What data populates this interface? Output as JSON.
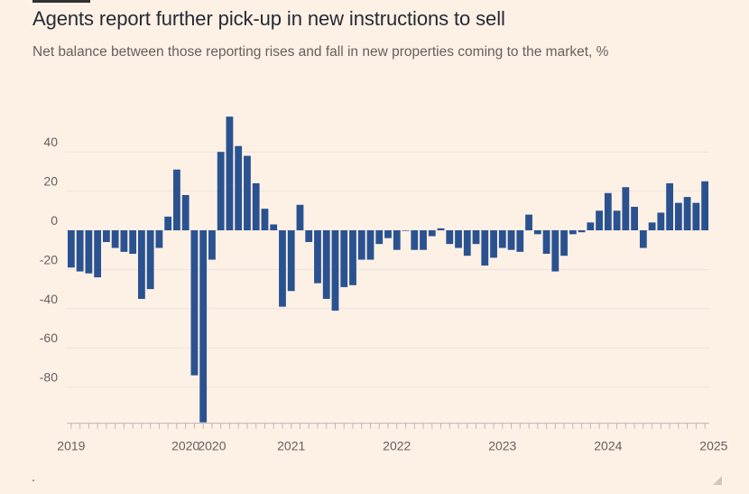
{
  "title": "Agents report further pick-up in new instructions to sell",
  "subtitle": "Net balance between those reporting rises and fall in new properties coming to the market, %",
  "colors": {
    "bar": "#2a5290",
    "grid": "#ece3da",
    "axis": "#bdb6b0",
    "text": "#66605c",
    "background": "#fdf1e6"
  },
  "chart_data": {
    "type": "bar",
    "ylim": [
      -98,
      60
    ],
    "y_ticks": [
      40,
      20,
      0,
      -20,
      -40,
      -60,
      -80
    ],
    "x_ticks": [
      {
        "label": "2019",
        "index": 0
      },
      {
        "label": "2020",
        "index": 13
      },
      {
        "label": "2020",
        "index": 16
      },
      {
        "label": "2021",
        "index": 25
      },
      {
        "label": "2022",
        "index": 37
      },
      {
        "label": "2023",
        "index": 49
      },
      {
        "label": "2024",
        "index": 61
      },
      {
        "label": "2025",
        "index": 73
      }
    ],
    "values": [
      -19,
      -21,
      -22,
      -24,
      -6,
      -9,
      -11,
      -12,
      -35,
      -30,
      -9,
      7,
      31,
      18,
      -74,
      -98,
      -15,
      40,
      58,
      43,
      38,
      24,
      11,
      3,
      -39,
      -31,
      13,
      -6,
      -27,
      -35,
      -41,
      -29,
      -28,
      -15,
      -15,
      -7,
      -4,
      -10,
      0,
      -10,
      -10,
      -3,
      1,
      -7,
      -9,
      -13,
      -7,
      -18,
      -14,
      -9,
      -10,
      -11,
      8,
      -2,
      -12,
      -21,
      -13,
      -2,
      -1,
      4,
      10,
      19,
      10,
      22,
      12,
      -9,
      4,
      9,
      24,
      14,
      17,
      14,
      25
    ]
  }
}
